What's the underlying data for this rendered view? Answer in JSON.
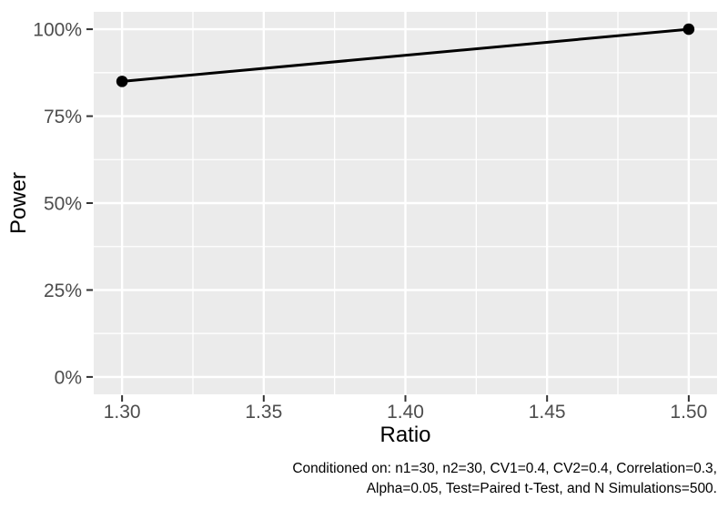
{
  "chart_data": {
    "type": "line",
    "title": "",
    "x": [
      1.3,
      1.5
    ],
    "series": [
      {
        "name": "Power",
        "values": [
          85,
          100
        ]
      }
    ],
    "xlabel": "Ratio",
    "ylabel": "Power",
    "xlim": [
      1.29,
      1.51
    ],
    "ylim": [
      -5,
      105
    ],
    "xticks": {
      "values": [
        1.3,
        1.35,
        1.4,
        1.45,
        1.5
      ],
      "labels": [
        "1.30",
        "1.35",
        "1.40",
        "1.45",
        "1.50"
      ],
      "minor": [
        1.325,
        1.375,
        1.425,
        1.475
      ]
    },
    "yticks": {
      "values": [
        0,
        25,
        50,
        75,
        100
      ],
      "labels": [
        "0%",
        "25%",
        "50%",
        "75%",
        "100%"
      ],
      "minor": [
        12.5,
        37.5,
        62.5,
        87.5
      ]
    },
    "grid": "on",
    "legend": "none",
    "caption": {
      "line1": "Conditioned on: n1=30, n2=30, CV1=0.4, CV2=0.4, Correlation=0.3,",
      "line2": "Alpha=0.05, Test=Paired t-Test, and N Simulations=500."
    },
    "colors": {
      "panel_bg": "#EBEBEB",
      "grid": "#FFFFFF",
      "series": "#000000",
      "tick_mark": "#333333",
      "tick_label": "#4D4D4D",
      "axis_title": "#000000",
      "caption_text": "#000000"
    },
    "style": {
      "line_width": 3,
      "point_radius": 6.3,
      "grid_major_width": 2.4,
      "grid_minor_width": 1.3
    }
  }
}
